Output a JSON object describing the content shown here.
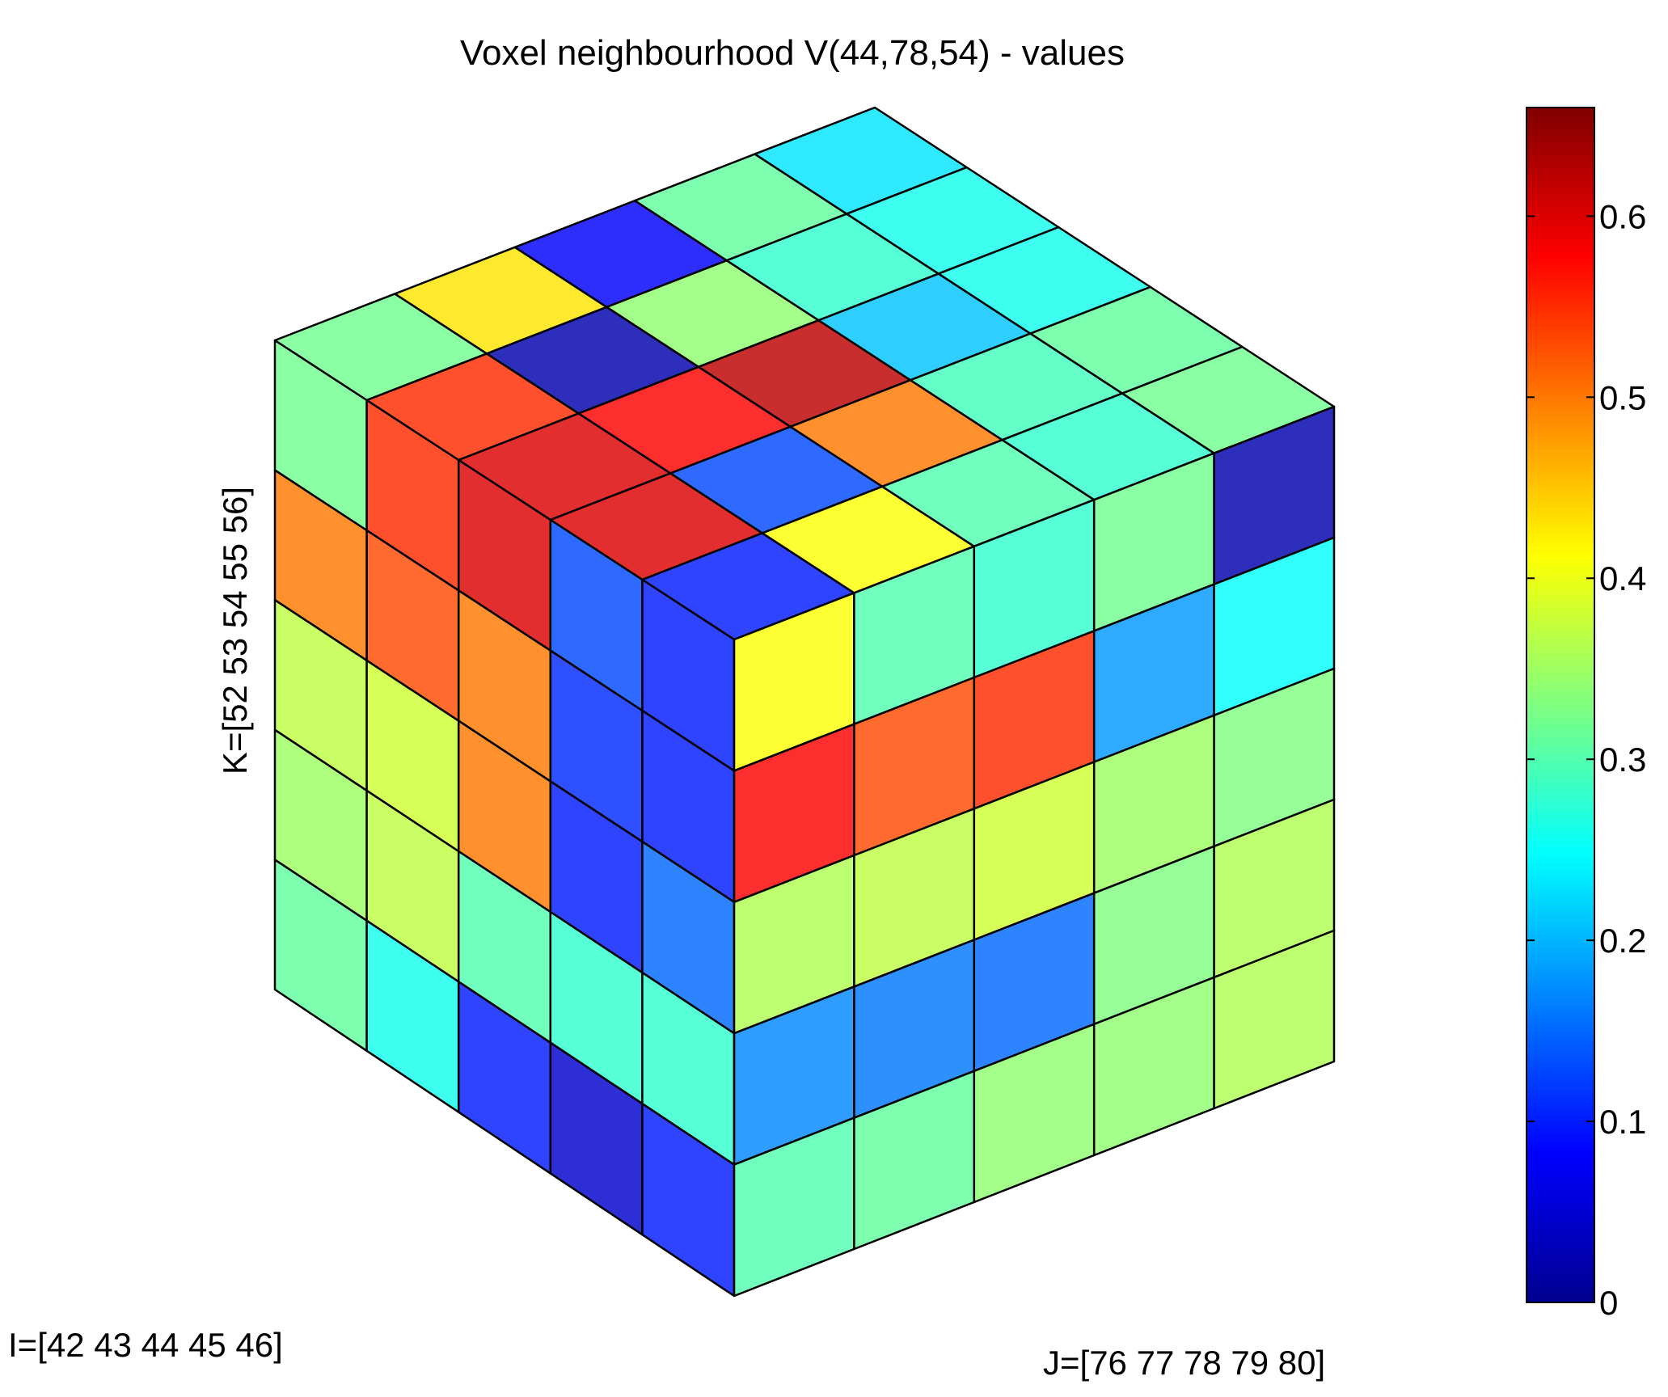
{
  "chart_data": {
    "type": "heatmap",
    "title": "Voxel neighbourhood V(44,78,54) - values",
    "xlabel": "I=[42  43  44  45  46]",
    "ylabel": "J=[76  77  78  79  80]",
    "zlabel": "K=[52  53  54  55  56]",
    "I": [
      42,
      43,
      44,
      45,
      46
    ],
    "J": [
      76,
      77,
      78,
      79,
      80
    ],
    "K": [
      52,
      53,
      54,
      55,
      56
    ],
    "colormap": "jet",
    "clim": [
      0,
      0.66
    ],
    "colorbar": {
      "ticks": [
        0,
        0.1,
        0.2,
        0.3,
        0.4,
        0.5,
        0.6
      ],
      "tick_labels": [
        "0",
        "0.1",
        "0.2",
        "0.3",
        "0.4",
        "0.5",
        "0.6"
      ],
      "placement": "right"
    },
    "grid": false,
    "visible_values": {
      "top": {
        "description_axes": "rows = I from 42 (back-left) to 46 (front), cols = J from 76 to 80",
        "values": [
          [
            0.32,
            0.43,
            0.08,
            0.31,
            0.23
          ],
          [
            0.55,
            0.03,
            0.34,
            0.28,
            0.26
          ],
          [
            0.6,
            0.58,
            0.62,
            0.21,
            0.26
          ],
          [
            0.6,
            0.13,
            0.5,
            0.29,
            0.31
          ],
          [
            0.1,
            0.41,
            0.3,
            0.28,
            0.32
          ]
        ]
      },
      "left": {
        "description_axes": "rows = K from 56 (top) to 52 (bottom), cols = I from 42 (left) to 46 (front edge)",
        "values": [
          [
            0.32,
            0.55,
            0.6,
            0.13,
            0.1
          ],
          [
            0.5,
            0.53,
            0.5,
            0.11,
            0.1
          ],
          [
            0.37,
            0.38,
            0.5,
            0.1,
            0.15
          ],
          [
            0.35,
            0.37,
            0.3,
            0.28,
            0.28
          ],
          [
            0.31,
            0.26,
            0.1,
            0.05,
            0.1
          ]
        ]
      },
      "right": {
        "description_axes": "rows = K from 56 (top) to 52 (bottom), cols = J from 76 (front edge) to 80 (right)",
        "values": [
          [
            0.41,
            0.3,
            0.28,
            0.32,
            0.03
          ],
          [
            0.58,
            0.53,
            0.55,
            0.18,
            0.25
          ],
          [
            0.36,
            0.37,
            0.38,
            0.35,
            0.33
          ],
          [
            0.17,
            0.16,
            0.15,
            0.33,
            0.36
          ],
          [
            0.3,
            0.31,
            0.34,
            0.34,
            0.36
          ]
        ]
      }
    }
  }
}
